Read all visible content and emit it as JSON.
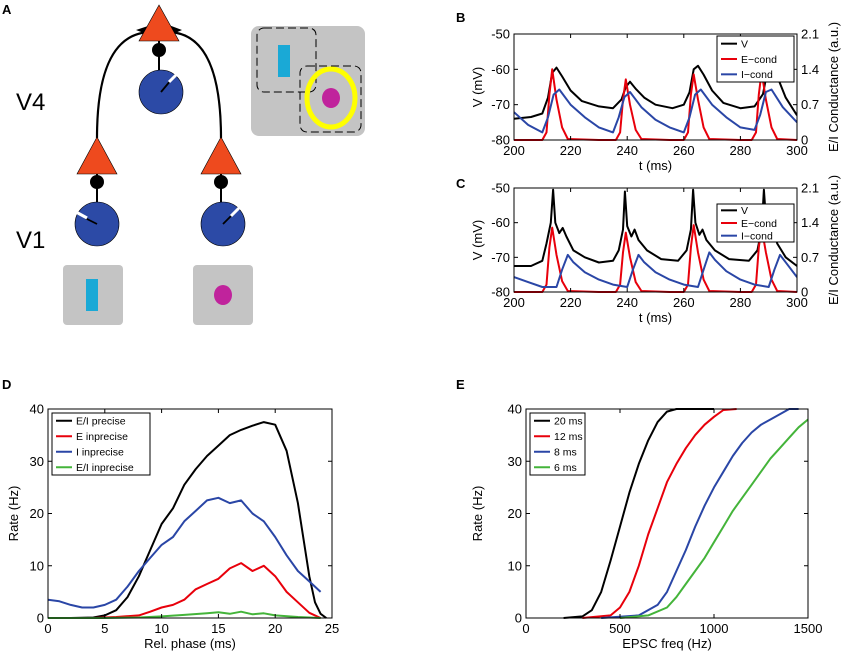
{
  "colors": {
    "black": "#000000",
    "red": "#e8000b",
    "blue": "#2a46a6",
    "green": "#44b43a",
    "orange": "#ee4a1e",
    "circle_fill": "#2c4aa6",
    "gray": "#c4c4c4",
    "cyan": "#1aa9d6",
    "magenta": "#c0239c",
    "yellow": "#ffff00"
  },
  "panelA": {
    "label": "A",
    "v4_label": "V4",
    "v1_label": "V1",
    "icons": [
      "pyramidal-neuron-icon",
      "interneuron-icon",
      "bar-stimulus-icon",
      "dot-stimulus-icon",
      "attention-ring-icon"
    ]
  },
  "chart_data": [
    {
      "panel": "B",
      "type": "line",
      "xlabel": "t (ms)",
      "ylabel": "V (mV)",
      "ylabel_right": "E/I Conductance (a.u.)",
      "xlim": [
        200,
        300
      ],
      "ylim": [
        -80,
        -50
      ],
      "ylim_right": [
        0,
        2.1
      ],
      "xticks": [
        200,
        220,
        240,
        260,
        280,
        300
      ],
      "yticks": [
        -80,
        -70,
        -60,
        -50
      ],
      "yticks_right": [
        "0",
        "0.7",
        "1.4",
        "2.1"
      ],
      "legend": [
        "V",
        "E−cond",
        "I−cond"
      ],
      "series": [
        {
          "name": "V",
          "axis": "left",
          "color": "#000000",
          "x": [
            200,
            206,
            210,
            212,
            213.5,
            215,
            217,
            220,
            224,
            230,
            235,
            238,
            239.5,
            241,
            243,
            246,
            250,
            256,
            260,
            262,
            263.5,
            265,
            267,
            270,
            274,
            280,
            285,
            288,
            289.5,
            291,
            293,
            296,
            300
          ],
          "y": [
            -74,
            -73.5,
            -72.5,
            -68,
            -61,
            -59.5,
            -62,
            -66,
            -69,
            -70.5,
            -71,
            -68.5,
            -65,
            -63.5,
            -65.5,
            -68,
            -70,
            -71,
            -70,
            -66.5,
            -60,
            -59,
            -61.5,
            -66,
            -69.5,
            -71,
            -70.5,
            -67,
            -60.5,
            -59,
            -62,
            -68,
            -73
          ]
        },
        {
          "name": "E−cond",
          "axis": "right",
          "color": "#e8000b",
          "x": [
            200,
            210,
            211.5,
            212.5,
            213.5,
            215,
            217,
            219,
            230,
            236,
            237.5,
            238.5,
            239.5,
            241,
            243,
            245,
            255,
            260,
            261.5,
            262.5,
            263.5,
            265,
            267,
            269,
            280,
            284,
            285.5,
            286.5,
            287.5,
            289,
            291,
            293,
            300
          ],
          "y": [
            0,
            0,
            0.15,
            0.9,
            1.4,
            0.8,
            0.25,
            0.02,
            0,
            0,
            0.15,
            0.8,
            1.2,
            0.7,
            0.2,
            0.02,
            0,
            0,
            0.15,
            0.9,
            1.3,
            0.8,
            0.25,
            0.02,
            0,
            0,
            0.15,
            0.9,
            1.35,
            0.8,
            0.25,
            0.02,
            0
          ]
        },
        {
          "name": "I−cond",
          "axis": "right",
          "color": "#2a46a6",
          "x": [
            200,
            205,
            210,
            212,
            214,
            216,
            220,
            225,
            230,
            235,
            237,
            239,
            241,
            245,
            250,
            255,
            260,
            262,
            264,
            266,
            270,
            275,
            280,
            285,
            287,
            289,
            291,
            295,
            300
          ],
          "y": [
            0.55,
            0.3,
            0.15,
            0.45,
            0.9,
            1.0,
            0.7,
            0.45,
            0.25,
            0.15,
            0.45,
            0.85,
            0.95,
            0.65,
            0.4,
            0.25,
            0.15,
            0.45,
            0.9,
            1.0,
            0.7,
            0.45,
            0.25,
            0.2,
            0.5,
            0.95,
            1.0,
            0.65,
            0.35
          ]
        }
      ]
    },
    {
      "panel": "C",
      "type": "line",
      "xlabel": "t (ms)",
      "ylabel": "V (mV)",
      "ylabel_right": "E/I Conductance (a.u.)",
      "xlim": [
        200,
        300
      ],
      "ylim": [
        -80,
        -50
      ],
      "ylim_right": [
        0,
        2.1
      ],
      "xticks": [
        200,
        220,
        240,
        260,
        280,
        300
      ],
      "yticks": [
        -80,
        -70,
        -60,
        -50
      ],
      "yticks_right": [
        "0",
        "0.7",
        "1.4",
        "2.1"
      ],
      "legend": [
        "V",
        "E−cond",
        "I−cond"
      ],
      "series": [
        {
          "name": "V",
          "axis": "left",
          "color": "#000000",
          "x": [
            200,
            206,
            210,
            211.5,
            213,
            213.8,
            214.6,
            216,
            217.2,
            218.5,
            221,
            225,
            230,
            235,
            237,
            238.5,
            239.2,
            240,
            241.5,
            242.6,
            244,
            247,
            252,
            258,
            261,
            262.5,
            263.3,
            264.1,
            265.5,
            266.6,
            268,
            271,
            276,
            283,
            286,
            287.5,
            288.3,
            289.1,
            290.5,
            291.6,
            293,
            296,
            300
          ],
          "y": [
            -72.5,
            -72.5,
            -71,
            -66,
            -60,
            -50.5,
            -60,
            -63,
            -61.5,
            -64,
            -68,
            -70,
            -71.5,
            -71,
            -68,
            -62,
            -51,
            -61,
            -64,
            -62,
            -65,
            -68,
            -70.5,
            -71,
            -68,
            -62,
            -50.5,
            -60,
            -63.5,
            -62,
            -65,
            -68,
            -70.5,
            -71,
            -68,
            -62,
            -50.5,
            -60,
            -64,
            -62,
            -66,
            -70,
            -72.5
          ]
        },
        {
          "name": "E−cond",
          "axis": "right",
          "color": "#e8000b",
          "x": [
            200,
            210,
            211.5,
            212.5,
            213.5,
            215,
            217,
            219,
            230,
            236,
            237.5,
            238.5,
            239.5,
            241,
            243,
            245,
            255,
            260,
            261.5,
            262.5,
            263.5,
            265,
            267,
            269,
            280,
            284,
            285.5,
            286.5,
            287.5,
            289,
            291,
            293,
            300
          ],
          "y": [
            0,
            0,
            0.15,
            0.9,
            1.3,
            0.75,
            0.22,
            0.02,
            0,
            0,
            0.15,
            0.8,
            1.2,
            0.7,
            0.2,
            0.02,
            0,
            0,
            0.15,
            0.9,
            1.35,
            0.8,
            0.25,
            0.02,
            0,
            0,
            0.15,
            0.9,
            1.3,
            0.8,
            0.25,
            0.02,
            0
          ]
        },
        {
          "name": "I−cond",
          "axis": "right",
          "color": "#2a46a6",
          "x": [
            200,
            205,
            210,
            215,
            217,
            219,
            221,
            225,
            230,
            235,
            240,
            242,
            244,
            246,
            250,
            255,
            260,
            265,
            267,
            269,
            271,
            275,
            280,
            285,
            290,
            292,
            294,
            296,
            300
          ],
          "y": [
            0.3,
            0.2,
            0.1,
            0.1,
            0.45,
            0.75,
            0.6,
            0.4,
            0.25,
            0.15,
            0.1,
            0.45,
            0.75,
            0.6,
            0.4,
            0.25,
            0.15,
            0.1,
            0.45,
            0.8,
            0.65,
            0.42,
            0.25,
            0.15,
            0.1,
            0.45,
            0.75,
            0.6,
            0.3
          ]
        }
      ]
    },
    {
      "panel": "D",
      "type": "line",
      "xlabel": "Rel. phase (ms)",
      "ylabel": "Rate (Hz)",
      "xlim": [
        0,
        25
      ],
      "ylim": [
        0,
        40
      ],
      "xticks": [
        0,
        5,
        10,
        15,
        20,
        25
      ],
      "yticks": [
        0,
        10,
        20,
        30,
        40
      ],
      "legend": [
        "E/I precise",
        "E inprecise",
        "I inprecise",
        "E/I inprecise"
      ],
      "series": [
        {
          "name": "E/I precise",
          "color": "#000000",
          "x": [
            0,
            2,
            4,
            5,
            6,
            7,
            8,
            9,
            10,
            11,
            12,
            13,
            14,
            15,
            16,
            17,
            18,
            19,
            20,
            21,
            22,
            22.5,
            23,
            23.5,
            24,
            24.5
          ],
          "y": [
            0,
            0,
            0.1,
            0.5,
            1.5,
            4,
            8,
            13,
            18,
            21,
            25.5,
            28.5,
            31,
            33,
            35,
            36,
            36.8,
            37.5,
            37,
            32,
            22,
            15,
            8,
            3,
            0.8,
            0
          ]
        },
        {
          "name": "E inprecise",
          "color": "#e8000b",
          "x": [
            0,
            4,
            6,
            8,
            9,
            10,
            11,
            12,
            13,
            14,
            15,
            16,
            17,
            18,
            19,
            20,
            21,
            22,
            23,
            24
          ],
          "y": [
            0,
            0,
            0.2,
            0.5,
            1.2,
            2,
            2.5,
            3.5,
            5.5,
            6.5,
            7.5,
            9.5,
            10.5,
            9,
            10,
            8,
            5,
            3,
            1,
            0
          ]
        },
        {
          "name": "I inprecise",
          "color": "#2a46a6",
          "x": [
            0,
            1,
            2,
            3,
            4,
            5,
            6,
            7,
            8,
            9,
            10,
            11,
            12,
            13,
            14,
            15,
            16,
            17,
            18,
            19,
            20,
            21,
            22,
            23,
            24
          ],
          "y": [
            3.5,
            3.2,
            2.5,
            2,
            2,
            2.5,
            3.5,
            6,
            9,
            11.5,
            14,
            15.5,
            18.5,
            20.5,
            22.5,
            23,
            22,
            22.5,
            20,
            18.5,
            15.5,
            12,
            9,
            7,
            5
          ]
        },
        {
          "name": "E/I inprecise",
          "color": "#44b43a",
          "x": [
            0,
            5,
            8,
            10,
            12,
            14,
            15,
            16,
            17,
            18,
            19,
            20,
            22,
            24
          ],
          "y": [
            0,
            0,
            0.1,
            0.3,
            0.6,
            0.9,
            1.1,
            0.8,
            1.2,
            0.7,
            0.9,
            0.5,
            0.2,
            0
          ]
        }
      ]
    },
    {
      "panel": "E",
      "type": "line",
      "xlabel": "EPSC freq (Hz)",
      "ylabel": "Rate (Hz)",
      "xlim": [
        0,
        1500
      ],
      "ylim": [
        0,
        40
      ],
      "xticks": [
        0,
        500,
        1000,
        1500
      ],
      "yticks": [
        0,
        10,
        20,
        30,
        40
      ],
      "legend": [
        "20 ms",
        "12 ms",
        "8 ms",
        "6 ms"
      ],
      "series": [
        {
          "name": "20 ms",
          "color": "#000000",
          "x": [
            200,
            300,
            350,
            400,
            450,
            500,
            550,
            600,
            650,
            700,
            750,
            800,
            1000
          ],
          "y": [
            0,
            0.3,
            1.5,
            5,
            11,
            17.5,
            24,
            29.5,
            34,
            37.5,
            39.5,
            40,
            40
          ]
        },
        {
          "name": "12 ms",
          "color": "#e8000b",
          "x": [
            300,
            450,
            500,
            550,
            600,
            650,
            700,
            750,
            800,
            850,
            900,
            950,
            1000,
            1050,
            1120
          ],
          "y": [
            0,
            0.5,
            2,
            5,
            10,
            16,
            21,
            26,
            29.5,
            32.5,
            35,
            37,
            38.5,
            39.8,
            40
          ]
        },
        {
          "name": "8 ms",
          "color": "#2a46a6",
          "x": [
            400,
            600,
            700,
            750,
            800,
            850,
            900,
            950,
            1000,
            1050,
            1100,
            1150,
            1200,
            1250,
            1300,
            1350,
            1400,
            1450
          ],
          "y": [
            0,
            0.5,
            2.5,
            5,
            9,
            13,
            17.5,
            21.5,
            25,
            28,
            31,
            33.5,
            35.5,
            37,
            38,
            39,
            40,
            40
          ]
        },
        {
          "name": "6 ms",
          "color": "#44b43a",
          "x": [
            500,
            650,
            750,
            800,
            850,
            900,
            950,
            1000,
            1050,
            1100,
            1150,
            1200,
            1250,
            1300,
            1350,
            1400,
            1450,
            1500
          ],
          "y": [
            0,
            0.5,
            2,
            4,
            6.5,
            9,
            11.5,
            14.5,
            17.5,
            20.5,
            23,
            25.5,
            28,
            30.5,
            32.5,
            34.5,
            36.5,
            38
          ]
        }
      ]
    }
  ]
}
